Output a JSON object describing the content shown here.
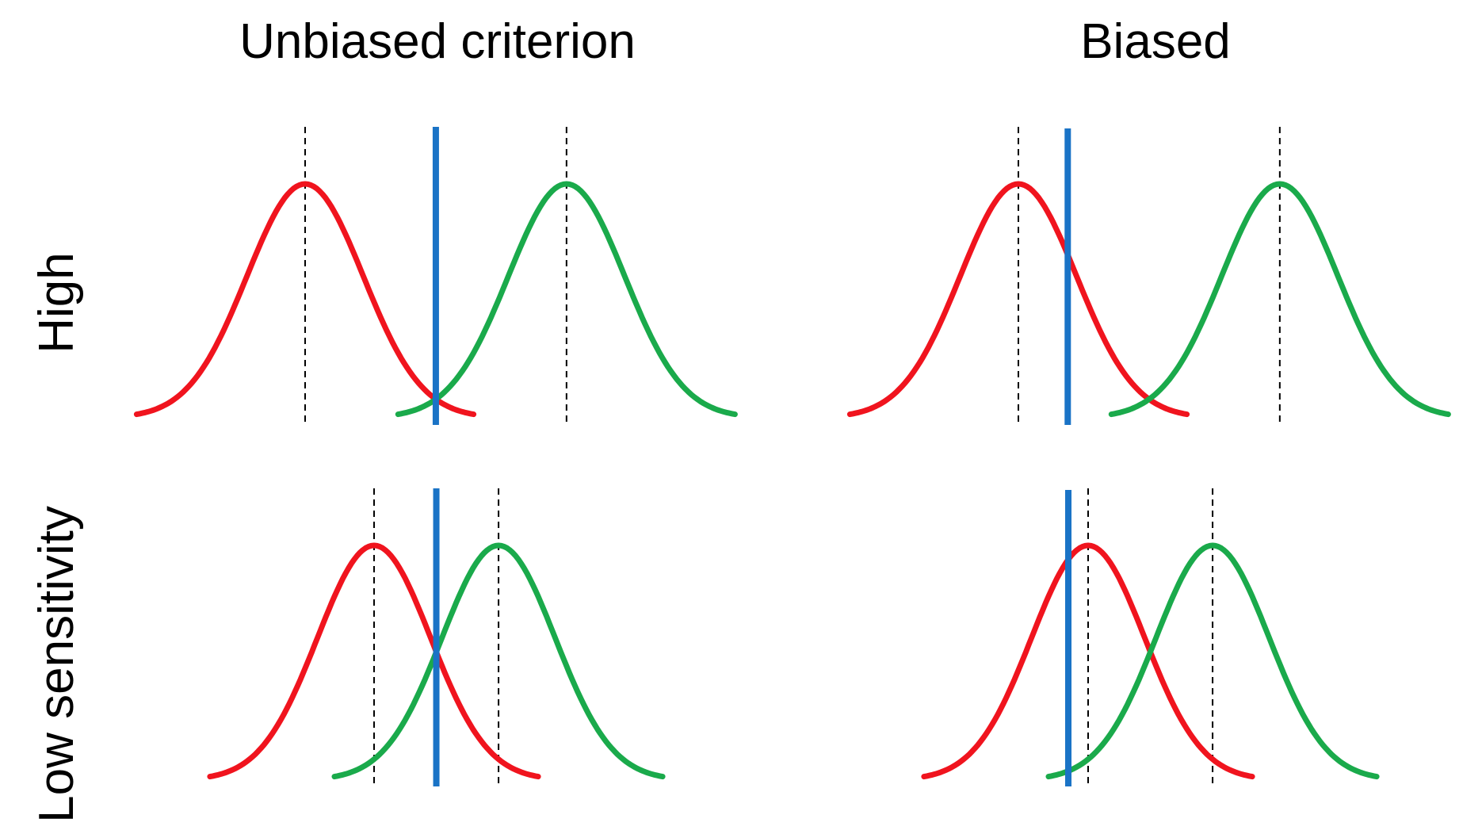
{
  "columns": {
    "unbiased": "Unbiased criterion",
    "biased": "Biased"
  },
  "rows": {
    "high": "High",
    "low": "Low sensitivity"
  },
  "colors": {
    "noise": "#f0141e",
    "signal": "#1aaa4b",
    "criterion": "#1a73c6",
    "mean_line": "#000000"
  },
  "panels": [
    {
      "id": "high-unbiased",
      "row": "high",
      "column": "unbiased",
      "noise_mean": 0,
      "signal_mean": 4.5,
      "criterion": 2.25,
      "sd": 1
    },
    {
      "id": "high-biased",
      "row": "high",
      "column": "biased",
      "noise_mean": 0,
      "signal_mean": 4.5,
      "criterion": 0.85,
      "sd": 1
    },
    {
      "id": "low-unbiased",
      "row": "low",
      "column": "unbiased",
      "noise_mean": 0,
      "signal_mean": 2.2,
      "criterion": 1.1,
      "sd": 1
    },
    {
      "id": "low-biased",
      "row": "low",
      "column": "biased",
      "noise_mean": 0,
      "signal_mean": 2.2,
      "criterion": -0.35,
      "sd": 1
    }
  ]
}
